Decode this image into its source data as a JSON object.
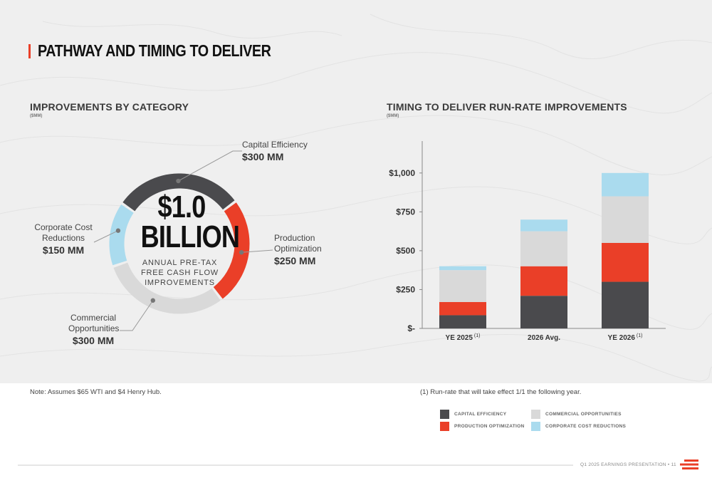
{
  "page": {
    "title": "PATHWAY AND TIMING TO DELIVER",
    "footer": "Q1 2025 EARNINGS PRESENTATION  •  11"
  },
  "colors": {
    "accent": "#ea3f28",
    "capital": "#4a4a4d",
    "production": "#ea3f28",
    "commercial": "#d9d9d9",
    "corporate": "#aadbee",
    "background": "#efefef"
  },
  "left": {
    "title": "IMPROVEMENTS BY CATEGORY",
    "unit": "($MM)",
    "center_big": "$1.0\nBILLION",
    "center_sub": "ANNUAL PRE-TAX\nFREE CASH FLOW\nIMPROVEMENTS",
    "labels": {
      "capital_name": "Capital Efficiency",
      "capital_value": "$300 MM",
      "production_name": "Production\nOptimization",
      "production_value": "$250 MM",
      "commercial_name": "Commercial\nOpportunities",
      "commercial_value": "$300 MM",
      "corporate_name": "Corporate Cost\nReductions",
      "corporate_value": "$150 MM"
    }
  },
  "right": {
    "title": "TIMING TO DELIVER RUN-RATE IMPROVEMENTS",
    "unit": "($MM)"
  },
  "notes": {
    "left": "Note: Assumes $65 WTI and $4 Henry Hub.",
    "right": "(1) Run-rate that will take effect 1/1 the following year."
  },
  "legend": [
    {
      "label": "CAPITAL EFFICIENCY",
      "color": "#4a4a4d"
    },
    {
      "label": "PRODUCTION OPTIMIZATION",
      "color": "#ea3f28"
    },
    {
      "label": "COMMERCIAL OPPORTUNITIES",
      "color": "#d9d9d9"
    },
    {
      "label": "CORPORATE COST REDUCTIONS",
      "color": "#aadbee"
    }
  ],
  "chart_data": [
    {
      "type": "pie",
      "title": "IMPROVEMENTS BY CATEGORY",
      "unit": "($MM)",
      "categories": [
        "Capital Efficiency",
        "Production Optimization",
        "Commercial Opportunities",
        "Corporate Cost Reductions"
      ],
      "values": [
        300,
        250,
        300,
        150
      ],
      "colors": [
        "#4a4a4d",
        "#ea3f28",
        "#d9d9d9",
        "#aadbee"
      ]
    },
    {
      "type": "bar",
      "stacked": true,
      "title": "TIMING TO DELIVER RUN-RATE IMPROVEMENTS",
      "unit": "($MM)",
      "categories": [
        "YE 2025",
        "2026 Avg.",
        "YE 2026"
      ],
      "category_superscripts": [
        "(1)",
        "",
        "(1)"
      ],
      "series": [
        {
          "name": "CAPITAL EFFICIENCY",
          "color": "#4a4a4d",
          "values": [
            85,
            210,
            300
          ]
        },
        {
          "name": "PRODUCTION OPTIMIZATION",
          "color": "#ea3f28",
          "values": [
            85,
            190,
            250
          ]
        },
        {
          "name": "COMMERCIAL OPPORTUNITIES",
          "color": "#d9d9d9",
          "values": [
            205,
            225,
            300
          ]
        },
        {
          "name": "CORPORATE COST REDUCTIONS",
          "color": "#aadbee",
          "values": [
            25,
            75,
            150
          ]
        }
      ],
      "ylim": [
        0,
        1100
      ],
      "yticks": [
        0,
        250,
        500,
        750,
        1000
      ],
      "ytick_labels": [
        "$-",
        "$250",
        "$500",
        "$750",
        "$1,000"
      ],
      "grid": false
    }
  ]
}
